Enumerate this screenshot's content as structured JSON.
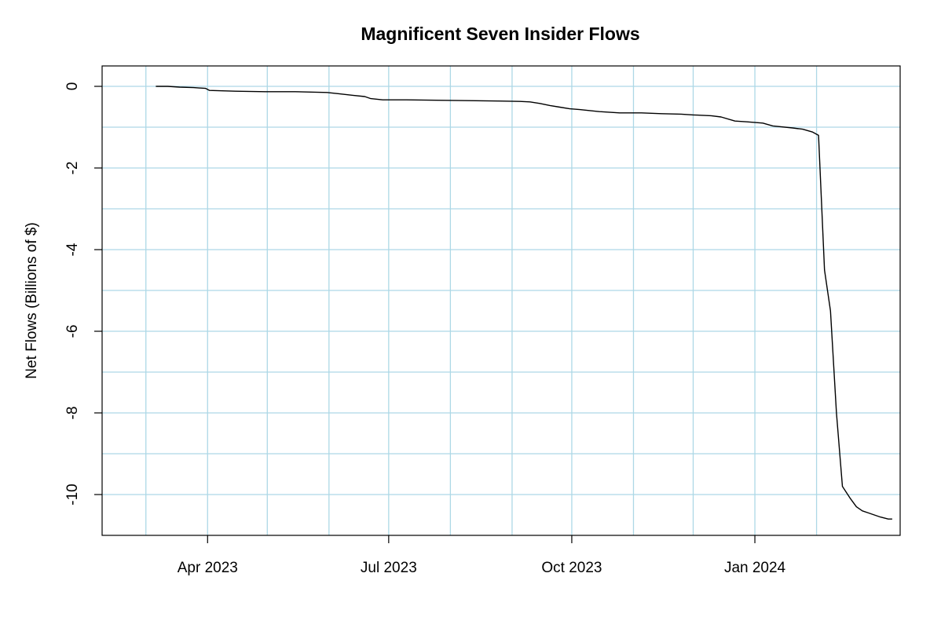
{
  "chart_data": {
    "type": "line",
    "title": "Magnificent Seven Insider Flows",
    "xlabel": "",
    "ylabel": "Net Flows (Billions of $)",
    "ylim": [
      -11,
      0.5
    ],
    "xlim": [
      "2023-02-07",
      "2024-03-14"
    ],
    "grid": true,
    "grid_color": "#add8e6",
    "line_color": "#000000",
    "x_ticks": [
      {
        "date": "2023-04-01",
        "label": "Apr 2023"
      },
      {
        "date": "2023-07-01",
        "label": "Jul 2023"
      },
      {
        "date": "2023-10-01",
        "label": "Oct 2023"
      },
      {
        "date": "2024-01-01",
        "label": "Jan 2024"
      }
    ],
    "x_gridlines": [
      "2023-03-01",
      "2023-04-01",
      "2023-05-01",
      "2023-06-01",
      "2023-07-01",
      "2023-08-01",
      "2023-09-01",
      "2023-10-01",
      "2023-11-01",
      "2023-12-01",
      "2024-01-01",
      "2024-02-01"
    ],
    "y_ticks": [
      0,
      -2,
      -4,
      -6,
      -8,
      -10
    ],
    "y_tick_labels": [
      "0",
      "-2",
      "-4",
      "-6",
      "-8",
      "-10"
    ],
    "y_gridlines": [
      0,
      -1,
      -2,
      -3,
      -4,
      -5,
      -6,
      -7,
      -8,
      -9,
      -10
    ],
    "series": [
      {
        "x": [
          "2023-03-06",
          "2023-03-12",
          "2023-03-18",
          "2023-03-25",
          "2023-03-31",
          "2023-04-02",
          "2023-04-15",
          "2023-04-30",
          "2023-05-15",
          "2023-05-31",
          "2023-06-06",
          "2023-06-13",
          "2023-06-19",
          "2023-06-22",
          "2023-06-28",
          "2023-07-10",
          "2023-07-25",
          "2023-08-10",
          "2023-08-25",
          "2023-09-05",
          "2023-09-10",
          "2023-09-15",
          "2023-09-20",
          "2023-09-25",
          "2023-09-30",
          "2023-10-05",
          "2023-10-15",
          "2023-10-25",
          "2023-11-05",
          "2023-11-15",
          "2023-11-25",
          "2023-12-01",
          "2023-12-10",
          "2023-12-15",
          "2023-12-22",
          "2023-12-28",
          "2024-01-05",
          "2024-01-10",
          "2024-01-20",
          "2024-01-25",
          "2024-01-30",
          "2024-02-02",
          "2024-02-05",
          "2024-02-08",
          "2024-02-11",
          "2024-02-14",
          "2024-02-18",
          "2024-02-21",
          "2024-02-24",
          "2024-02-27",
          "2024-03-01",
          "2024-03-04",
          "2024-03-08",
          "2024-03-10"
        ],
        "values": [
          0.0,
          0.0,
          -0.02,
          -0.03,
          -0.05,
          -0.1,
          -0.12,
          -0.13,
          -0.13,
          -0.15,
          -0.18,
          -0.22,
          -0.25,
          -0.3,
          -0.33,
          -0.33,
          -0.34,
          -0.35,
          -0.36,
          -0.37,
          -0.38,
          -0.42,
          -0.47,
          -0.51,
          -0.55,
          -0.57,
          -0.62,
          -0.65,
          -0.65,
          -0.67,
          -0.68,
          -0.7,
          -0.72,
          -0.75,
          -0.85,
          -0.87,
          -0.9,
          -0.97,
          -1.02,
          -1.05,
          -1.12,
          -1.2,
          -4.5,
          -5.5,
          -8.0,
          -9.8,
          -10.1,
          -10.3,
          -10.4,
          -10.45,
          -10.5,
          -10.55,
          -10.6,
          -10.6
        ]
      }
    ]
  }
}
